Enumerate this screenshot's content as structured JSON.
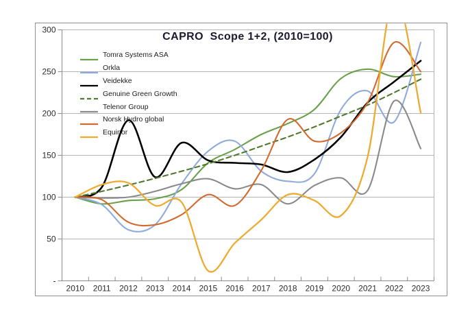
{
  "chart_data": {
    "type": "line",
    "title": "CAPRO  Scope 1+2, (2010=100)",
    "title_color": "#1a1a2e",
    "x": [
      2010,
      2011,
      2012,
      2013,
      2014,
      2015,
      2016,
      2017,
      2018,
      2019,
      2020,
      2021,
      2022,
      2023
    ],
    "x_labels": [
      "2010",
      "2011",
      "2012",
      "2013",
      "2014",
      "2015",
      "2016",
      "2017",
      "2018",
      "2019",
      "2020",
      "2021",
      "2022",
      "2023"
    ],
    "y_ticks": [
      {
        "value": 0,
        "label": "-"
      },
      {
        "value": 50,
        "label": "50"
      },
      {
        "value": 100,
        "label": "100"
      },
      {
        "value": 150,
        "label": "150"
      },
      {
        "value": 200,
        "label": "200"
      },
      {
        "value": 250,
        "label": "250"
      },
      {
        "value": 300,
        "label": "300"
      }
    ],
    "ylim": [
      0,
      300
    ],
    "grid": "horizontal",
    "gridline_color": "#b4b4b4",
    "axis_color": "#8c8c8c",
    "tick_label_color": "#2b2b2b",
    "legend_position": "upper-left-overlay",
    "series": [
      {
        "name": "Tomra Systems ASA",
        "color": "#69A14A",
        "dash": "solid",
        "width": 2.1,
        "values": [
          100,
          92,
          96,
          98,
          109,
          141,
          157,
          175,
          188,
          205,
          242,
          253,
          244,
          247
        ]
      },
      {
        "name": "Orkla",
        "color": "#8FAADC",
        "dash": "solid",
        "width": 2.1,
        "values": [
          100,
          91,
          61,
          67,
          116,
          155,
          167,
          131,
          119,
          128,
          205,
          227,
          190,
          285
        ]
      },
      {
        "name": "Veidekke",
        "color": "#000000",
        "dash": "solid",
        "width": 2.6,
        "values": [
          100,
          112,
          192,
          124,
          165,
          144,
          141,
          139,
          130,
          145,
          172,
          213,
          238,
          263
        ]
      },
      {
        "name": "Genuine Green Growth",
        "color": "#4F7A2E",
        "dash": "dashed",
        "width": 2.1,
        "values": [
          100,
          107,
          114.5,
          122.5,
          131,
          140,
          150,
          161,
          172,
          184,
          197,
          210,
          225,
          241
        ]
      },
      {
        "name": "Telenor Group",
        "color": "#898989",
        "dash": "solid",
        "width": 2.1,
        "values": [
          100,
          99,
          100,
          107,
          116,
          122,
          110,
          115,
          92,
          114,
          123,
          108,
          215,
          158
        ]
      },
      {
        "name": "Norsk Hydro global",
        "color": "#D2692E",
        "dash": "solid",
        "width": 2.1,
        "values": [
          100,
          97,
          70,
          67,
          79,
          103,
          90,
          132,
          193,
          167,
          177,
          213,
          285,
          250
        ]
      },
      {
        "name": "Equinor",
        "color": "#EDAB2F",
        "dash": "solid",
        "width": 2.3,
        "values": [
          100,
          115,
          117,
          90,
          94,
          12,
          45,
          73,
          103,
          96,
          78,
          148,
          340,
          201
        ]
      }
    ]
  }
}
